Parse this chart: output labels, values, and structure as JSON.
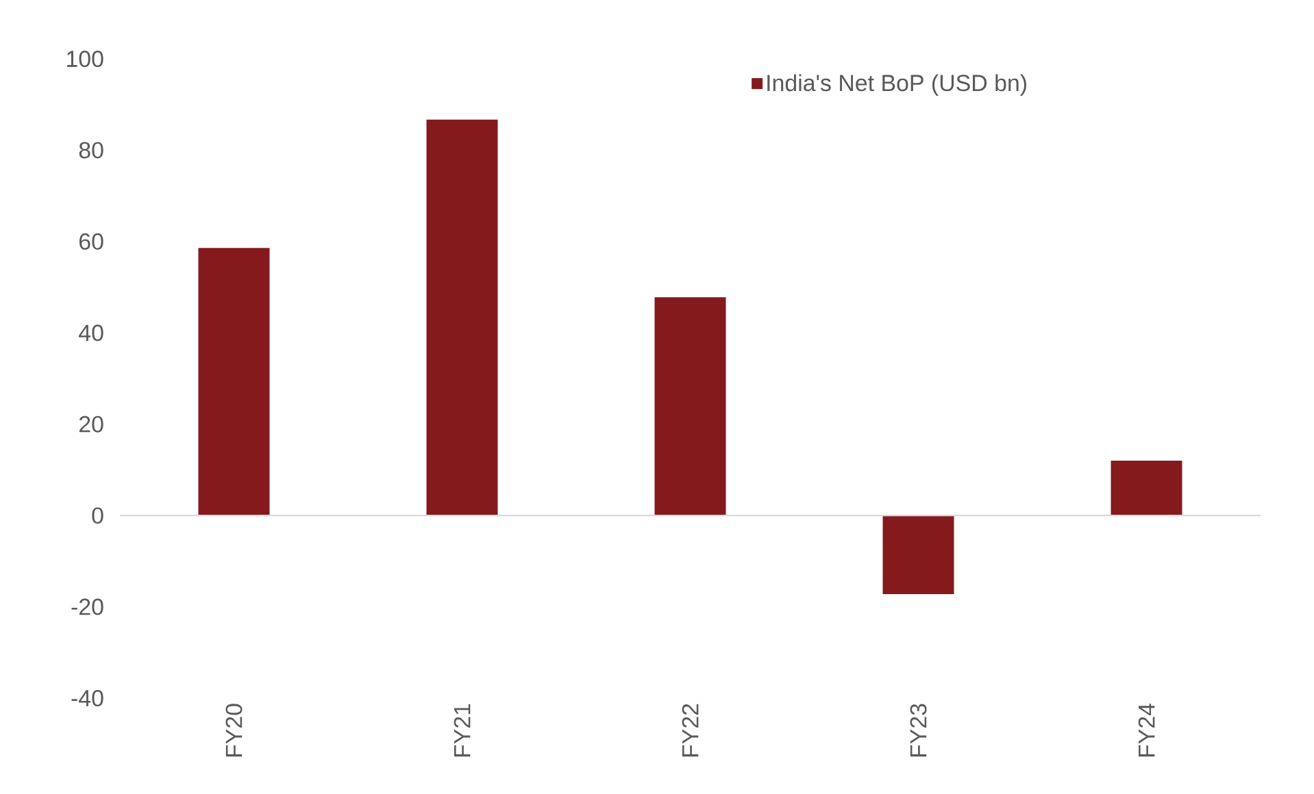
{
  "chart_data": {
    "type": "bar",
    "categories": [
      "FY20",
      "FY21",
      "FY22",
      "FY23",
      "FY24"
    ],
    "series": [
      {
        "name": "India's Net BoP (USD bn)",
        "color": "#841a1c",
        "values": [
          58.6,
          86.7,
          47.8,
          -17.2,
          12.0
        ]
      }
    ],
    "ylim": [
      -40,
      100
    ],
    "yticks": [
      -40,
      -20,
      0,
      20,
      40,
      60,
      80,
      100
    ],
    "legend": "top right",
    "ref_lines": [
      {
        "axis": "y",
        "value": 0,
        "color": "#d9d9d9"
      }
    ]
  }
}
